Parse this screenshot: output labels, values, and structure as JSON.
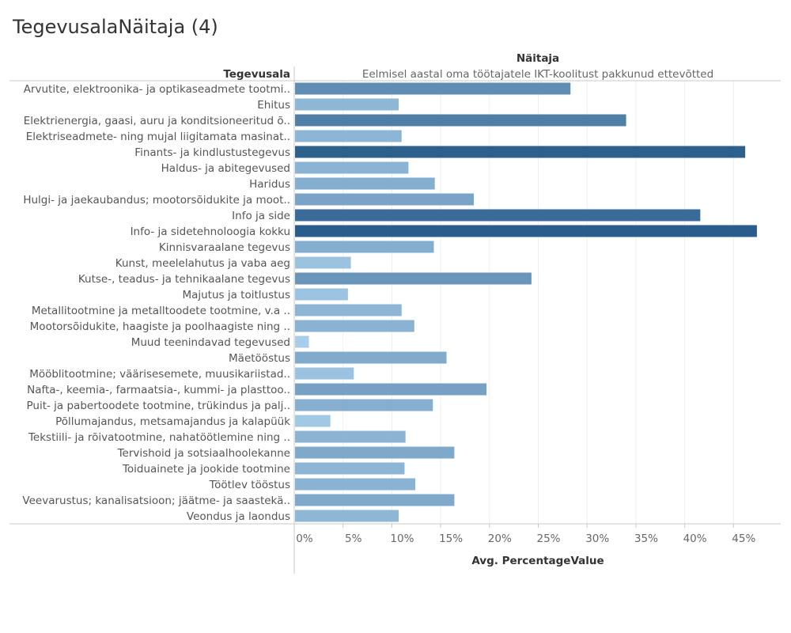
{
  "page": {
    "title": "TegevusalaNäitaja (4)"
  },
  "chart_data": {
    "type": "bar",
    "orientation": "horizontal",
    "row_header": "Tegevusala",
    "column_header": "Näitaja",
    "column_value": "Eelmisel aastal oma töötajatele IKT-koolitust pakkunud ettevõtted",
    "xlabel": "Avg. PercentageValue",
    "xlim": [
      0,
      48
    ],
    "x_ticks": [
      "0%",
      "5%",
      "10%",
      "15%",
      "20%",
      "25%",
      "30%",
      "35%",
      "40%",
      "45%"
    ],
    "grid": true,
    "color_scale": [
      "#a7cde9",
      "#2b5d8c"
    ],
    "categories": [
      "Arvutite, elektroonika- ja optikaseadmete tootmi..",
      "Ehitus",
      "Elektrienergia, gaasi, auru ja konditsioneeritud õ..",
      "Elektriseadmete- ning mujal liigitamata masinat..",
      "Finants- ja kindlustustegevus",
      "Haldus- ja abitegevused",
      "Haridus",
      "Hulgi- ja jaekaubandus; mootorsõidukite ja moot..",
      "Info ja side",
      "Info- ja sidetehnoloogia kokku",
      "Kinnisvaraalane tegevus",
      "Kunst, meelelahutus ja vaba aeg",
      "Kutse-, teadus- ja tehnikaalane tegevus",
      "Majutus ja toitlustus",
      "Metallitootmine ja metalltoodete tootmine, v.a ..",
      "Mootorsõidukite, haagiste ja poolhaagiste ning ..",
      "Muud teenindavad tegevused",
      "Mäetööstus",
      "Mööblitootmine; väärisesemete, muusikariistad..",
      "Nafta-, keemia-, farmaatsia-, kummi- ja plasttoo..",
      "Puit- ja pabertoodete tootmine, trükindus ja palj..",
      "Põllumajandus, metsamajandus ja kalapüük",
      "Tekstiili- ja rõivatootmine, nahatöötlemine ning ..",
      "Tervishoid ja sotsiaalhoolekanne",
      "Toiduainete ja jookide tootmine",
      "Töötlev tööstus",
      "Veevarustus; kanalisatsioon; jäätme- ja saastekä..",
      "Veondus ja laondus"
    ],
    "values": [
      28.3,
      10.7,
      34.0,
      11.0,
      46.2,
      11.7,
      14.4,
      18.4,
      41.6,
      47.4,
      14.3,
      5.8,
      24.3,
      5.5,
      11.0,
      12.3,
      1.5,
      15.6,
      6.1,
      19.7,
      14.2,
      3.7,
      11.4,
      16.4,
      11.3,
      12.4,
      16.4,
      10.7
    ]
  }
}
